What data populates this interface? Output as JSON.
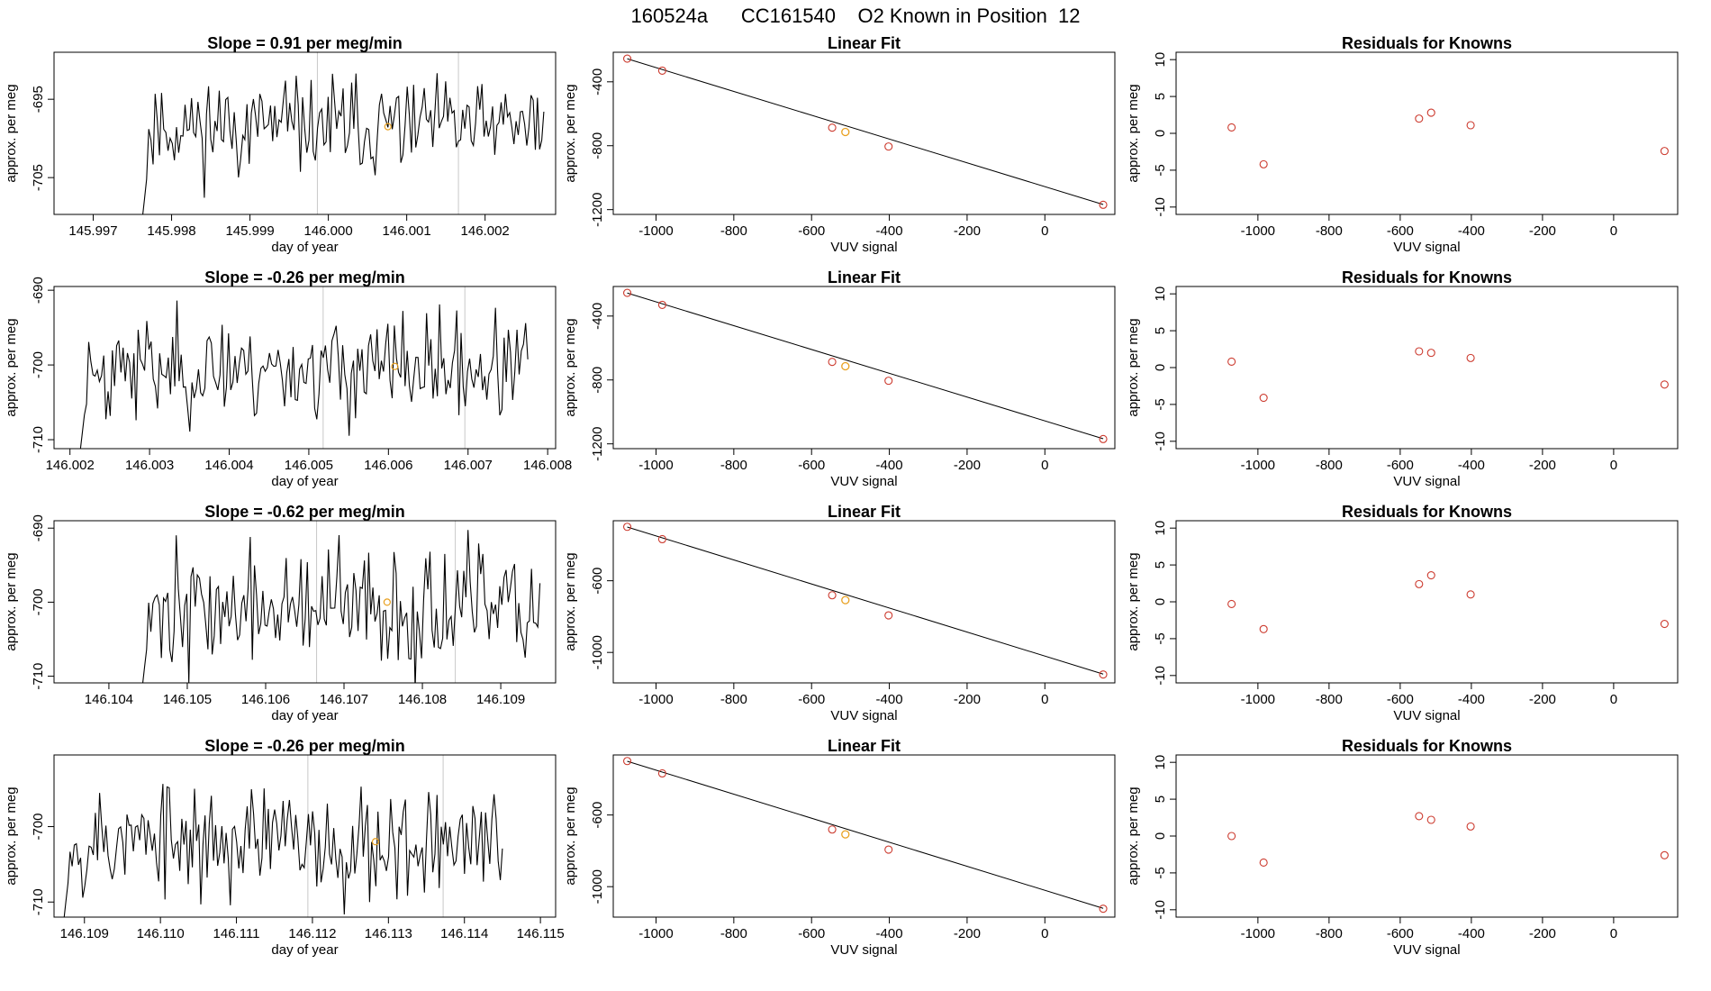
{
  "page": {
    "title": "160524a      CC161540    O2 Known in Position  12"
  },
  "chart_data": [
    {
      "type": "line",
      "title": "Slope =  0.91  per meg/min",
      "xlabel": "day of year",
      "ylabel": "approx. per meg",
      "xlim": [
        145.9965,
        146.0029
      ],
      "ylim": [
        -709.7,
        -689.0
      ],
      "xticks": [
        145.997,
        145.998,
        145.999,
        146.0,
        146.001,
        146.002
      ],
      "xtick_labels": [
        "145.997",
        "145.998",
        "145.999",
        "146.000",
        "146.001",
        "146.002"
      ],
      "yticks": [
        -705,
        -695
      ],
      "ytick_labels": [
        "-705",
        "-695"
      ],
      "vlines": [
        145.99986,
        146.00166
      ],
      "x_start": 145.9976,
      "x_end": 146.00275,
      "n_points": 190,
      "seed": 11,
      "mean": -698.5,
      "sd": 3.0,
      "marker": {
        "x": 146.00076,
        "y": -698.5,
        "color": "#e8a020"
      }
    },
    {
      "type": "line",
      "title": "Slope =  -0.26  per meg/min",
      "xlabel": "day of year",
      "ylabel": "approx. per meg",
      "xlim": [
        146.0018,
        146.0081
      ],
      "ylim": [
        -711.2,
        -689.5
      ],
      "xticks": [
        146.002,
        146.003,
        146.004,
        146.005,
        146.006,
        146.007,
        146.008
      ],
      "xtick_labels": [
        "146.002",
        "146.003",
        "146.004",
        "146.005",
        "146.006",
        "146.007",
        "146.008"
      ],
      "yticks": [
        -710,
        -700,
        -690
      ],
      "ytick_labels": [
        "-710",
        "-700",
        "-690"
      ],
      "vlines": [
        146.00518,
        146.00696
      ],
      "x_start": 146.0021,
      "x_end": 146.00775,
      "n_points": 210,
      "seed": 23,
      "mean": -700.5,
      "sd": 3.4,
      "marker": {
        "x": 146.00608,
        "y": -700.2,
        "color": "#e8a020"
      }
    },
    {
      "type": "line",
      "title": "Slope =  -0.62  per meg/min",
      "xlabel": "day of year",
      "ylabel": "approx. per meg",
      "xlim": [
        146.1033,
        146.1097
      ],
      "ylim": [
        -710.9,
        -689.0
      ],
      "xticks": [
        146.104,
        146.105,
        146.106,
        146.107,
        146.108,
        146.109
      ],
      "xtick_labels": [
        "146.104",
        "146.105",
        "146.106",
        "146.107",
        "146.108",
        "146.109"
      ],
      "yticks": [
        -710,
        -700,
        -690
      ],
      "ytick_labels": [
        "-710",
        "-700",
        "-690"
      ],
      "vlines": [
        146.10665,
        146.10842
      ],
      "x_start": 146.1044,
      "x_end": 146.1095,
      "n_points": 190,
      "seed": 37,
      "mean": -701.0,
      "sd": 4.0,
      "marker": {
        "x": 146.10755,
        "y": -700.0,
        "color": "#e8a020"
      }
    },
    {
      "type": "line",
      "title": "Slope =  -0.26  per meg/min",
      "xlabel": "day of year",
      "ylabel": "approx. per meg",
      "xlim": [
        146.1086,
        146.1152
      ],
      "ylim": [
        -712.0,
        -690.5
      ],
      "xticks": [
        146.109,
        146.11,
        146.111,
        146.112,
        146.113,
        146.114,
        146.115
      ],
      "xtick_labels": [
        "146.109",
        "146.110",
        "146.111",
        "146.112",
        "146.113",
        "146.114",
        "146.115"
      ],
      "yticks": [
        -710,
        -700
      ],
      "ytick_labels": [
        "-710",
        "-700"
      ],
      "vlines": [
        146.11194,
        146.11372
      ],
      "x_start": 146.1087,
      "x_end": 146.1145,
      "n_points": 210,
      "seed": 53,
      "mean": -702.0,
      "sd": 3.8,
      "marker": {
        "x": 146.11283,
        "y": -702.0,
        "color": "#e8a020"
      }
    },
    {
      "type": "scatter",
      "title": "Linear Fit",
      "xlabel": "VUV signal",
      "ylabel": "approx. per meg",
      "xlim": [
        -1110,
        180
      ],
      "ylim": [
        -1230,
        -215
      ],
      "xticks": [
        -1000,
        -800,
        -600,
        -400,
        -200,
        0
      ],
      "xtick_labels": [
        "-1000",
        "-800",
        "-600",
        "-400",
        "-200",
        "0"
      ],
      "yticks": [
        -1200,
        -800,
        -400
      ],
      "ytick_labels": [
        "-1200",
        "-800",
        "-400"
      ],
      "points": {
        "x": [
          -1074,
          -984,
          -547,
          -402,
          150
        ],
        "y": [
          -255,
          -330,
          -687,
          -805,
          -1170
        ]
      },
      "highlight": {
        "x": -513,
        "y": -714,
        "color": "#e8a020"
      },
      "fit": {
        "x": [
          -1074,
          150
        ],
        "y": [
          -256,
          -1168
        ]
      }
    },
    {
      "type": "scatter",
      "title": "Linear Fit",
      "xlabel": "VUV signal",
      "ylabel": "approx. per meg",
      "xlim": [
        -1110,
        180
      ],
      "ylim": [
        -1230,
        -215
      ],
      "xticks": [
        -1000,
        -800,
        -600,
        -400,
        -200,
        0
      ],
      "xtick_labels": [
        "-1000",
        "-800",
        "-600",
        "-400",
        "-200",
        "0"
      ],
      "yticks": [
        -1200,
        -800,
        -400
      ],
      "ytick_labels": [
        "-1200",
        "-800",
        "-400"
      ],
      "points": {
        "x": [
          -1074,
          -984,
          -547,
          -402,
          150
        ],
        "y": [
          -255,
          -330,
          -687,
          -805,
          -1170
        ]
      },
      "highlight": {
        "x": -513,
        "y": -714,
        "color": "#e8a020"
      },
      "fit": {
        "x": [
          -1074,
          150
        ],
        "y": [
          -256,
          -1168
        ]
      }
    },
    {
      "type": "scatter",
      "title": "Linear Fit",
      "xlabel": "VUV signal",
      "ylabel": "approx. per meg",
      "xlim": [
        -1110,
        180
      ],
      "ylim": [
        -1170,
        -265
      ],
      "xticks": [
        -1000,
        -800,
        -600,
        -400,
        -200,
        0
      ],
      "xtick_labels": [
        "-1000",
        "-800",
        "-600",
        "-400",
        "-200",
        "0"
      ],
      "yticks": [
        -1000,
        -600
      ],
      "ytick_labels": [
        "-1000",
        "-600"
      ],
      "points": {
        "x": [
          -1074,
          -984,
          -547,
          -402,
          150
        ],
        "y": [
          -299,
          -368,
          -681,
          -793,
          -1123
        ]
      },
      "highlight": {
        "x": -513,
        "y": -708,
        "color": "#e8a020"
      },
      "fit": {
        "x": [
          -1074,
          150
        ],
        "y": [
          -300,
          -1121
        ]
      }
    },
    {
      "type": "scatter",
      "title": "Linear Fit",
      "xlabel": "VUV signal",
      "ylabel": "approx. per meg",
      "xlim": [
        -1110,
        180
      ],
      "ylim": [
        -1170,
        -265
      ],
      "xticks": [
        -1000,
        -800,
        -600,
        -400,
        -200,
        0
      ],
      "xtick_labels": [
        "-1000",
        "-800",
        "-600",
        "-400",
        "-200",
        "0"
      ],
      "yticks": [
        -1000,
        -600
      ],
      "ytick_labels": [
        "-1000",
        "-600"
      ],
      "points": {
        "x": [
          -1074,
          -984,
          -547,
          -402,
          150
        ],
        "y": [
          -299,
          -368,
          -681,
          -793,
          -1123
        ]
      },
      "highlight": {
        "x": -513,
        "y": -708,
        "color": "#e8a020"
      },
      "fit": {
        "x": [
          -1074,
          150
        ],
        "y": [
          -300,
          -1121
        ]
      }
    },
    {
      "type": "scatter",
      "title": "Residuals for Knowns",
      "xlabel": "VUV signal",
      "ylabel": "approx. per meg",
      "xlim": [
        -1230,
        180
      ],
      "ylim": [
        -11,
        11
      ],
      "xticks": [
        -1000,
        -800,
        -600,
        -400,
        -200,
        0
      ],
      "xtick_labels": [
        "-1000",
        "-800",
        "-600",
        "-400",
        "-200",
        "0"
      ],
      "yticks": [
        -10,
        -5,
        0,
        5,
        10
      ],
      "ytick_labels": [
        "-10",
        "-5",
        "0",
        "5",
        "10"
      ],
      "points": {
        "x": [
          -1074,
          -984,
          -547,
          -513,
          -402,
          143
        ],
        "y": [
          0.8,
          -4.2,
          2.0,
          2.8,
          1.1,
          -2.4
        ]
      }
    },
    {
      "type": "scatter",
      "title": "Residuals for Knowns",
      "xlabel": "VUV signal",
      "ylabel": "approx. per meg",
      "xlim": [
        -1230,
        180
      ],
      "ylim": [
        -11,
        11
      ],
      "xticks": [
        -1000,
        -800,
        -600,
        -400,
        -200,
        0
      ],
      "xtick_labels": [
        "-1000",
        "-800",
        "-600",
        "-400",
        "-200",
        "0"
      ],
      "yticks": [
        -10,
        -5,
        0,
        5,
        10
      ],
      "ytick_labels": [
        "-10",
        "-5",
        "0",
        "5",
        "10"
      ],
      "points": {
        "x": [
          -1074,
          -984,
          -547,
          -513,
          -402,
          143
        ],
        "y": [
          0.8,
          -4.1,
          2.2,
          2.0,
          1.3,
          -2.3
        ]
      }
    },
    {
      "type": "scatter",
      "title": "Residuals for Knowns",
      "xlabel": "VUV signal",
      "ylabel": "approx. per meg",
      "xlim": [
        -1230,
        180
      ],
      "ylim": [
        -11,
        11
      ],
      "xticks": [
        -1000,
        -800,
        -600,
        -400,
        -200,
        0
      ],
      "xtick_labels": [
        "-1000",
        "-800",
        "-600",
        "-400",
        "-200",
        "0"
      ],
      "yticks": [
        -10,
        -5,
        0,
        5,
        10
      ],
      "ytick_labels": [
        "-10",
        "-5",
        "0",
        "5",
        "10"
      ],
      "points": {
        "x": [
          -1074,
          -984,
          -547,
          -513,
          -402,
          143
        ],
        "y": [
          -0.3,
          -3.7,
          2.4,
          3.6,
          1.0,
          -3.0
        ]
      }
    },
    {
      "type": "scatter",
      "title": "Residuals for Knowns",
      "xlabel": "VUV signal",
      "ylabel": "approx. per meg",
      "xlim": [
        -1230,
        180
      ],
      "ylim": [
        -11,
        11
      ],
      "xticks": [
        -1000,
        -800,
        -600,
        -400,
        -200,
        0
      ],
      "xtick_labels": [
        "-1000",
        "-800",
        "-600",
        "-400",
        "-200",
        "0"
      ],
      "yticks": [
        -10,
        -5,
        0,
        5,
        10
      ],
      "ytick_labels": [
        "-10",
        "-5",
        "0",
        "5",
        "10"
      ],
      "points": {
        "x": [
          -1074,
          -984,
          -547,
          -513,
          -402,
          143
        ],
        "y": [
          0.0,
          -3.6,
          2.7,
          2.2,
          1.3,
          -2.6
        ]
      }
    }
  ]
}
